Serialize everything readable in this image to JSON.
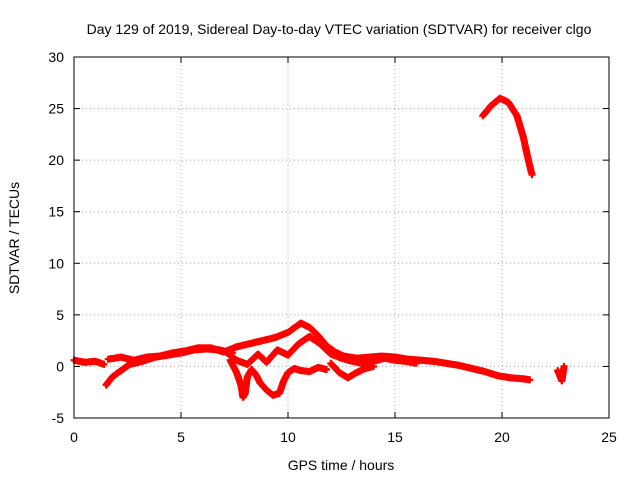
{
  "chart_data": {
    "type": "scatter",
    "title": "Day 129 of 2019, Sidereal Day-to-day VTEC variation (SDTVAR) for receiver clgo",
    "xlabel": "GPS time / hours",
    "ylabel": "SDTVAR / TECUs",
    "xlim": [
      0,
      25
    ],
    "ylim": [
      -5,
      30
    ],
    "xticks": [
      0,
      5,
      10,
      15,
      20,
      25
    ],
    "yticks": [
      -5,
      0,
      5,
      10,
      15,
      20,
      25,
      30
    ],
    "grid": true,
    "marker": "+",
    "series": [
      {
        "name": "SDTVAR",
        "color": "#ff0000",
        "tracks": [
          [
            [
              0.0,
              0.6
            ],
            [
              0.5,
              0.4
            ],
            [
              1.0,
              0.5
            ],
            [
              1.4,
              0.2
            ]
          ],
          [
            [
              1.5,
              -1.8
            ],
            [
              1.8,
              -1.0
            ],
            [
              2.2,
              -0.4
            ],
            [
              2.6,
              0.2
            ],
            [
              3.2,
              0.5
            ],
            [
              3.8,
              0.9
            ],
            [
              4.4,
              1.1
            ],
            [
              5.0,
              1.3
            ],
            [
              5.6,
              1.6
            ],
            [
              6.2,
              1.7
            ],
            [
              6.8,
              1.6
            ],
            [
              7.4,
              1.3
            ]
          ],
          [
            [
              1.6,
              0.7
            ],
            [
              2.2,
              0.9
            ],
            [
              2.8,
              0.6
            ],
            [
              3.4,
              0.9
            ],
            [
              4.0,
              1.0
            ],
            [
              4.6,
              1.3
            ],
            [
              5.2,
              1.5
            ],
            [
              5.8,
              1.8
            ],
            [
              6.4,
              1.8
            ],
            [
              7.0,
              1.4
            ],
            [
              7.6,
              1.9
            ],
            [
              8.2,
              2.2
            ],
            [
              8.8,
              2.5
            ],
            [
              9.4,
              2.8
            ],
            [
              10.0,
              3.3
            ],
            [
              10.6,
              4.2
            ],
            [
              11.0,
              3.8
            ],
            [
              11.4,
              3.0
            ],
            [
              11.8,
              2.0
            ],
            [
              12.2,
              1.4
            ],
            [
              12.6,
              1.0
            ],
            [
              13.2,
              0.8
            ],
            [
              13.8,
              0.9
            ],
            [
              14.4,
              1.0
            ],
            [
              15.0,
              0.9
            ],
            [
              15.6,
              0.7
            ],
            [
              16.2,
              0.6
            ],
            [
              16.8,
              0.5
            ],
            [
              17.4,
              0.3
            ],
            [
              18.0,
              0.1
            ],
            [
              18.6,
              -0.2
            ],
            [
              19.2,
              -0.5
            ],
            [
              19.8,
              -0.9
            ],
            [
              20.4,
              -1.1
            ],
            [
              21.0,
              -1.2
            ],
            [
              21.3,
              -1.3
            ]
          ],
          [
            [
              7.3,
              0.6
            ],
            [
              7.6,
              -0.6
            ],
            [
              7.8,
              -1.8
            ],
            [
              7.9,
              -3.0
            ],
            [
              8.0,
              -2.6
            ],
            [
              8.1,
              -1.0
            ],
            [
              8.3,
              -0.3
            ],
            [
              8.5,
              -0.8
            ],
            [
              8.7,
              -1.6
            ],
            [
              9.0,
              -2.3
            ],
            [
              9.3,
              -2.8
            ],
            [
              9.6,
              -2.6
            ],
            [
              9.8,
              -1.4
            ],
            [
              10.0,
              -0.6
            ],
            [
              10.3,
              -0.2
            ],
            [
              10.6,
              -0.4
            ],
            [
              11.0,
              -0.5
            ],
            [
              11.4,
              -0.1
            ],
            [
              11.8,
              -0.3
            ]
          ],
          [
            [
              12.0,
              0.3
            ],
            [
              12.4,
              -0.6
            ],
            [
              12.8,
              -1.1
            ],
            [
              13.2,
              -0.6
            ],
            [
              13.6,
              -0.2
            ],
            [
              14.0,
              0.0
            ]
          ],
          [
            [
              7.1,
              1.4
            ],
            [
              7.6,
              0.6
            ],
            [
              8.1,
              0.2
            ],
            [
              8.6,
              1.2
            ],
            [
              9.0,
              0.4
            ],
            [
              9.5,
              1.6
            ],
            [
              10.0,
              1.1
            ],
            [
              10.5,
              2.2
            ],
            [
              11.0,
              2.9
            ],
            [
              11.5,
              2.2
            ],
            [
              12.0,
              1.2
            ],
            [
              12.5,
              0.8
            ],
            [
              13.0,
              0.5
            ],
            [
              13.5,
              0.3
            ],
            [
              14.0,
              0.5
            ],
            [
              14.5,
              0.8
            ],
            [
              15.0,
              0.6
            ],
            [
              15.5,
              0.5
            ],
            [
              16.0,
              0.3
            ]
          ],
          [
            [
              19.1,
              24.3
            ],
            [
              19.5,
              25.3
            ],
            [
              19.9,
              26.0
            ],
            [
              20.3,
              25.6
            ],
            [
              20.7,
              24.3
            ],
            [
              21.0,
              22.2
            ],
            [
              21.2,
              20.3
            ],
            [
              21.4,
              18.6
            ]
          ],
          [
            [
              22.6,
              -0.4
            ],
            [
              22.8,
              -1.4
            ],
            [
              22.9,
              0.0
            ]
          ]
        ]
      }
    ]
  }
}
